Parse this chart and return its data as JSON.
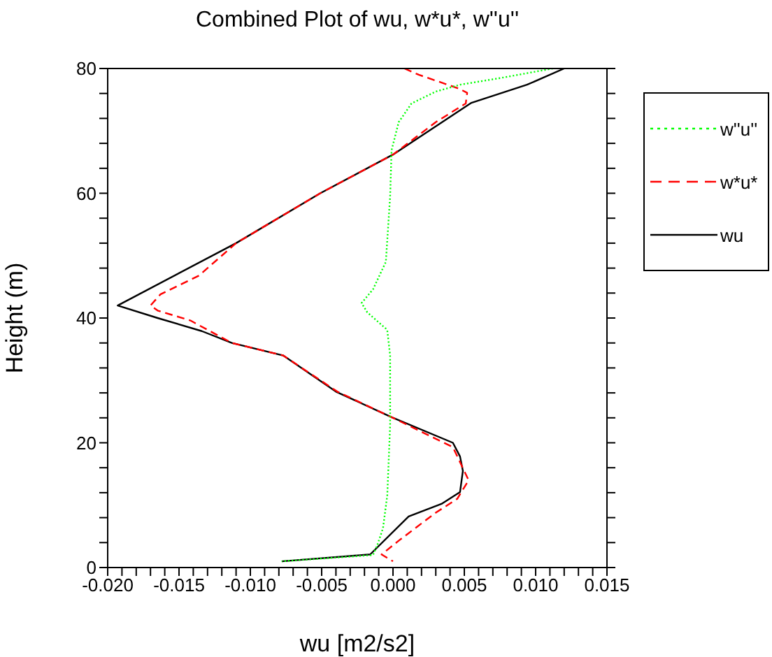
{
  "chart_data": {
    "type": "line",
    "title": "Combined Plot of wu, w*u*, w''u''",
    "xlabel": "wu [m2/s2]",
    "ylabel": "Height (m)",
    "xlim": [
      -0.02,
      0.015
    ],
    "xticks": [
      {
        "value": -0.02,
        "label": "-0.020"
      },
      {
        "value": -0.019,
        "label": null
      },
      {
        "value": -0.018,
        "label": null
      },
      {
        "value": -0.017,
        "label": null
      },
      {
        "value": -0.016,
        "label": null
      },
      {
        "value": -0.015,
        "label": "-0.015"
      },
      {
        "value": -0.014,
        "label": null
      },
      {
        "value": -0.013,
        "label": null
      },
      {
        "value": -0.012,
        "label": null
      },
      {
        "value": -0.011,
        "label": null
      },
      {
        "value": -0.01,
        "label": "-0.010"
      },
      {
        "value": -0.009,
        "label": null
      },
      {
        "value": -0.008,
        "label": null
      },
      {
        "value": -0.007,
        "label": null
      },
      {
        "value": -0.006,
        "label": null
      },
      {
        "value": -0.005,
        "label": "-0.005"
      },
      {
        "value": -0.004,
        "label": null
      },
      {
        "value": -0.003,
        "label": null
      },
      {
        "value": -0.002,
        "label": null
      },
      {
        "value": -0.001,
        "label": null
      },
      {
        "value": 0,
        "label": "0.000"
      },
      {
        "value": 0.001,
        "label": null
      },
      {
        "value": 0.002,
        "label": null
      },
      {
        "value": 0.003,
        "label": null
      },
      {
        "value": 0.004,
        "label": null
      },
      {
        "value": 0.005,
        "label": "0.005"
      },
      {
        "value": 0.006,
        "label": null
      },
      {
        "value": 0.007,
        "label": null
      },
      {
        "value": 0.008,
        "label": null
      },
      {
        "value": 0.009,
        "label": null
      },
      {
        "value": 0.01,
        "label": "0.010"
      },
      {
        "value": 0.011,
        "label": null
      },
      {
        "value": 0.012,
        "label": null
      },
      {
        "value": 0.013,
        "label": null
      },
      {
        "value": 0.014,
        "label": null
      },
      {
        "value": 0.015,
        "label": "0.015"
      }
    ],
    "ylim": [
      0,
      80
    ],
    "yticks": [
      0,
      {
        "value": 4,
        "label": null
      },
      {
        "value": 8,
        "label": null
      },
      {
        "value": 12,
        "label": null
      },
      {
        "value": 16,
        "label": null
      },
      20,
      {
        "value": 24,
        "label": null
      },
      {
        "value": 28,
        "label": null
      },
      {
        "value": 32,
        "label": null
      },
      {
        "value": 36,
        "label": null
      },
      40,
      {
        "value": 44,
        "label": null
      },
      {
        "value": 48,
        "label": null
      },
      {
        "value": 52,
        "label": null
      },
      {
        "value": 56,
        "label": null
      },
      60,
      {
        "value": 64,
        "label": null
      },
      {
        "value": 68,
        "label": null
      },
      {
        "value": 72,
        "label": null
      },
      {
        "value": 76,
        "label": null
      },
      80
    ],
    "legend": "top right",
    "series": [
      {
        "name": "w''u''",
        "color": "#00ff00",
        "line_style": "dotted",
        "x": [
          0.0112,
          0.0076,
          0.0047,
          0.003,
          0.0013,
          0.0004,
          -0.0001,
          -0.0002,
          -0.0005,
          -0.0014,
          -0.0022,
          -0.0018,
          -0.0005,
          -0.0004,
          -0.0002,
          -0.0002,
          -0.0004,
          -0.0007,
          -0.0011,
          -0.0014,
          -0.0078
        ],
        "values": [
          80,
          78.5,
          77.4,
          76.3,
          74.4,
          71.4,
          66.9,
          59.5,
          49,
          44.6,
          42.4,
          40.9,
          38.3,
          38,
          34,
          22.8,
          11.6,
          6.3,
          3.6,
          2,
          1
        ]
      },
      {
        "name": "w*u*",
        "color": "#ff0000",
        "line_style": "dashed",
        "x": [
          0.0008,
          0.0018,
          0.0046,
          0.0052,
          0.0051,
          0.003,
          0,
          -0.0051,
          -0.011,
          -0.0136,
          -0.0163,
          -0.017,
          -0.0165,
          -0.0142,
          -0.0113,
          -0.0077,
          -0.0039,
          -0.0001,
          0.0042,
          0.0053,
          0.0045,
          0.003,
          0.0004,
          -0.0008,
          0
        ],
        "values": [
          80,
          79,
          76.8,
          76.1,
          74.4,
          71.4,
          66.2,
          60,
          52,
          46.8,
          43.8,
          42,
          41.2,
          39.6,
          36,
          34,
          28.2,
          24.1,
          19.3,
          14,
          11,
          8.8,
          4.3,
          2.1,
          1
        ]
      },
      {
        "name": "wu",
        "color": "#000000",
        "line_style": "solid",
        "x": [
          0.012,
          0.0094,
          0.0055,
          0,
          -0.0051,
          -0.011,
          -0.0193,
          -0.0165,
          -0.0134,
          -0.0113,
          -0.0077,
          -0.004,
          -0.0001,
          0.0042,
          0.0047,
          0.0049,
          0.0047,
          0.0034,
          0.0011,
          -0.0016,
          -0.0078
        ],
        "values": [
          80,
          77.4,
          74.5,
          66.2,
          60,
          52,
          42,
          40,
          37.9,
          36,
          34,
          28.2,
          24.1,
          20,
          17.8,
          15.5,
          12.1,
          10.2,
          8.2,
          2.1,
          1
        ]
      }
    ]
  }
}
